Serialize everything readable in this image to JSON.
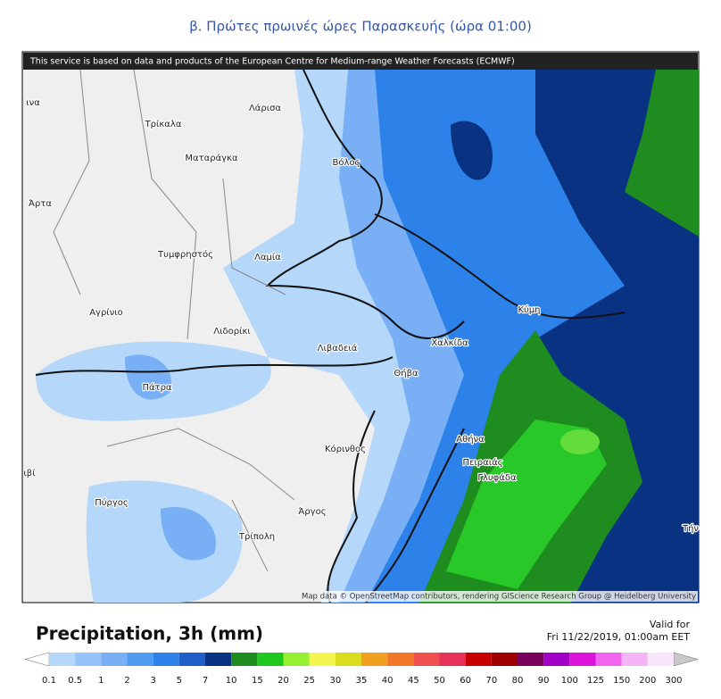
{
  "header": {
    "title": "β. Πρώτες πρωινές ώρες Παρασκευής (ώρα 01:00)"
  },
  "map": {
    "attribution_top": "This service is based on data and products of the European Centre for Medium-range Weather Forecasts (ECMWF)",
    "attribution_bottom": "Map data © OpenStreetMap contributors, rendering GIScience Research Group @ Heidelberg University",
    "places": [
      "Λάρισα",
      "Τρίκαλα",
      "Ματαράγκα",
      "Βόλος",
      "Άρτα",
      "Τυμφρηστός",
      "Λαμία",
      "Αγρίνιο",
      "Λιδορίκι",
      "Λιβαδειά",
      "Χαλκίδα",
      "Κύμη",
      "Θήβα",
      "Πάτρα",
      "Αθήνα",
      "Κόρινθος",
      "Πειραιάς",
      "Γλυφάδα",
      "Πύργος",
      "Άργος",
      "Τρίπολη",
      "ινα",
      "ιβί",
      "Τήν"
    ]
  },
  "legend": {
    "title": "Precipitation, 3h (mm)",
    "valid_label": "Valid for",
    "valid_time": "Fri 11/22/2019, 01:00am EET",
    "ticks": [
      "0.1",
      "0.5",
      "1",
      "2",
      "3",
      "5",
      "7",
      "10",
      "15",
      "20",
      "25",
      "30",
      "35",
      "40",
      "45",
      "50",
      "60",
      "70",
      "80",
      "90",
      "100",
      "125",
      "150",
      "200",
      "300"
    ],
    "colors": [
      "#b4d7fa",
      "#96c3f8",
      "#78aff5",
      "#509bf2",
      "#2d82ea",
      "#1e5fc8",
      "#0a3282",
      "#1e8c1e",
      "#1ec81e",
      "#96f032",
      "#f5f550",
      "#dcdc1e",
      "#f0a01e",
      "#f07828",
      "#f05050",
      "#e6325a",
      "#c80000",
      "#a00000",
      "#78005a",
      "#a000c8",
      "#dc14dc",
      "#f064f0",
      "#f5b4f5",
      "#fae6fa"
    ],
    "under_color": "#ffffff",
    "over_color": "#c8c8c8"
  }
}
